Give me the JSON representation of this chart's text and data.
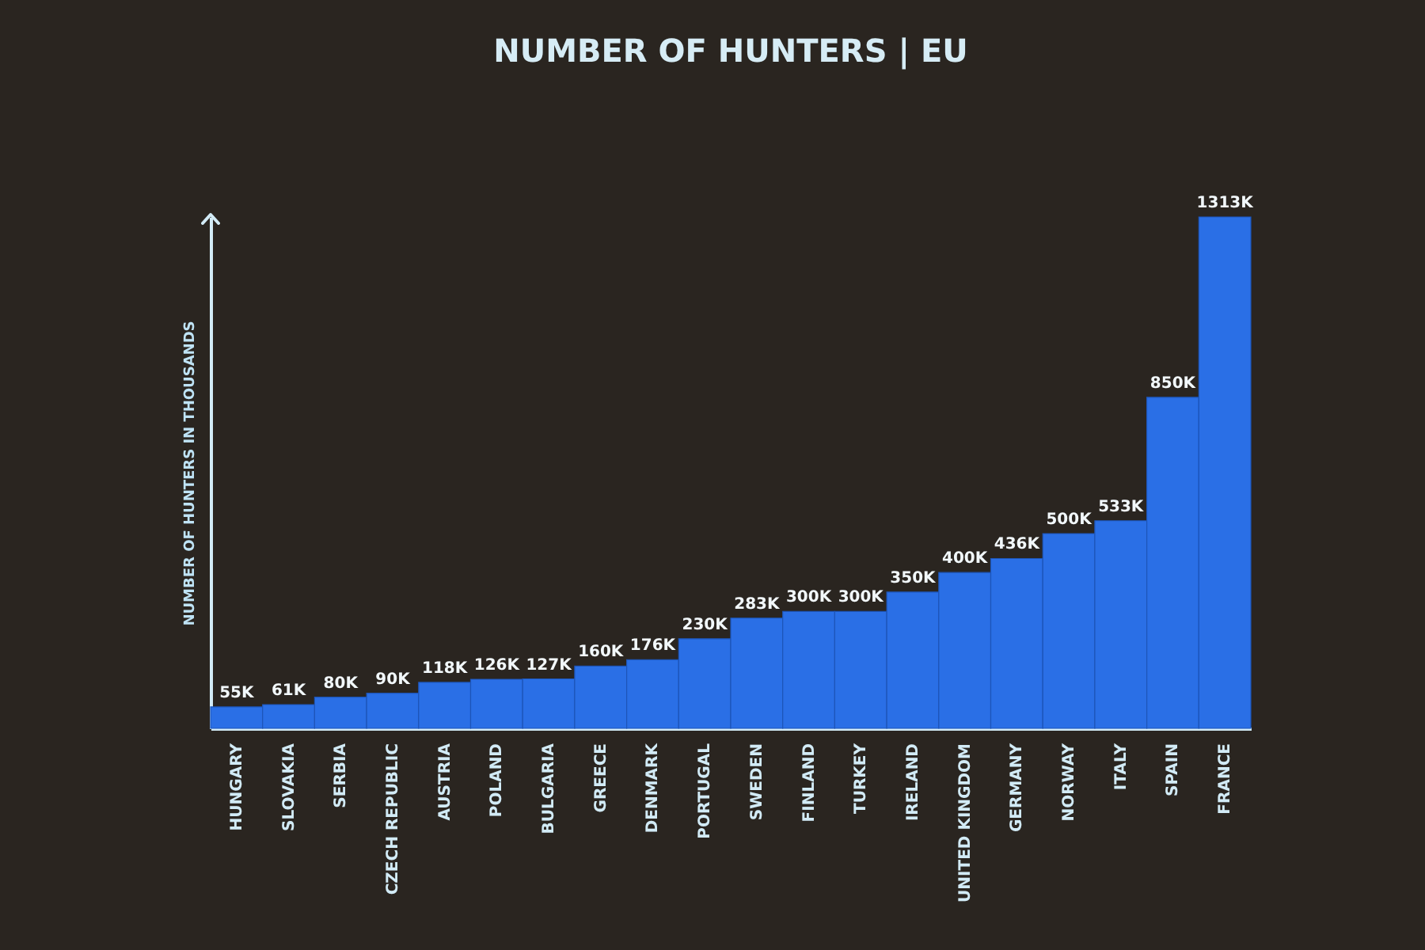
{
  "chart_data": {
    "type": "bar",
    "title": "NUMBER OF HUNTERS | EU",
    "ylabel": "NUMBER OF HUNTERS IN THOUSANDS",
    "categories": [
      "HUNGARY",
      "SLOVAKIA",
      "SERBIA",
      "CZECH REPUBLIC",
      "AUSTRIA",
      "POLAND",
      "BULGARIA",
      "GREECE",
      "DENMARK",
      "PORTUGAL",
      "SWEDEN",
      "FINLAND",
      "TURKEY",
      "IRELAND",
      "UNITED KINGDOM",
      "GERMANY",
      "NORWAY",
      "ITALY",
      "SPAIN",
      "FRANCE"
    ],
    "values": [
      55,
      61,
      80,
      90,
      118,
      126,
      127,
      160,
      176,
      230,
      283,
      300,
      300,
      350,
      400,
      436,
      500,
      533,
      850,
      1313
    ],
    "value_labels": [
      "55K",
      "61K",
      "80K",
      "90K",
      "118K",
      "126K",
      "127K",
      "160K",
      "176K",
      "230K",
      "283K",
      "300K",
      "300K",
      "350K",
      "400K",
      "436K",
      "500K",
      "533K",
      "850K",
      "1313K"
    ],
    "color": "#2a6fe6",
    "tick_labels": "x"
  }
}
